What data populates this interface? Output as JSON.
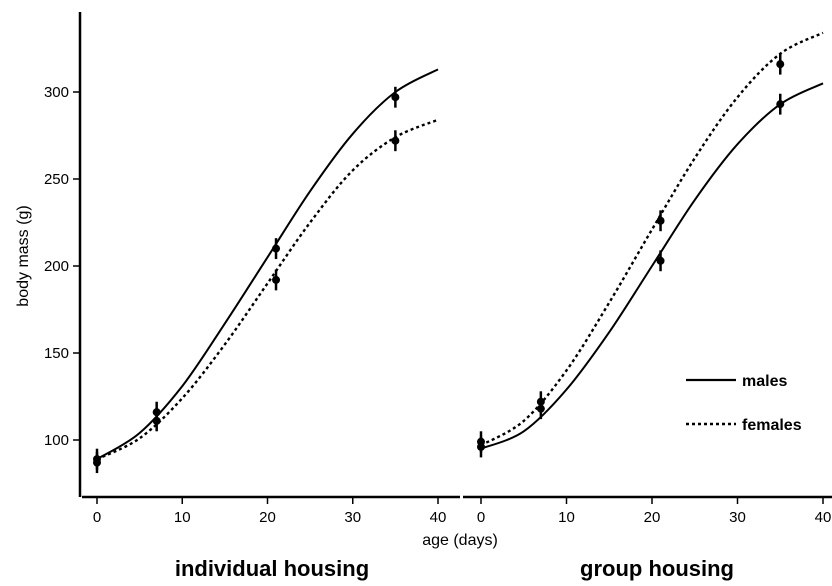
{
  "chart_data": {
    "type": "line",
    "ylabel": "body mass (g)",
    "xlabel": "age (days)",
    "ylim": [
      80,
      335
    ],
    "yticks": [
      100,
      150,
      200,
      250,
      300
    ],
    "legend": {
      "position": "right",
      "items": [
        {
          "label": "males",
          "style": "solid"
        },
        {
          "label": "females",
          "style": "dotted"
        }
      ]
    },
    "panels": [
      {
        "title": "individual housing",
        "xlim": [
          -1,
          41
        ],
        "xticks": [
          0,
          10,
          20,
          30,
          40
        ],
        "series": [
          {
            "name": "males",
            "style": "solid",
            "points": [
              {
                "x": 0,
                "y": 89,
                "err": 6
              },
              {
                "x": 7,
                "y": 116,
                "err": 6
              },
              {
                "x": 21,
                "y": 210,
                "err": 6
              },
              {
                "x": 35,
                "y": 297,
                "err": 6
              }
            ],
            "curve": {
              "x": [
                0,
                5,
                10,
                15,
                20,
                25,
                30,
                35,
                40
              ],
              "y": [
                89,
                104,
                131,
                167,
                205,
                243,
                276,
                300,
                313
              ]
            }
          },
          {
            "name": "females",
            "style": "dotted",
            "points": [
              {
                "x": 0,
                "y": 87,
                "err": 6
              },
              {
                "x": 7,
                "y": 111,
                "err": 6
              },
              {
                "x": 21,
                "y": 192,
                "err": 6
              },
              {
                "x": 35,
                "y": 272,
                "err": 6
              }
            ],
            "curve": {
              "x": [
                0,
                5,
                10,
                15,
                20,
                25,
                30,
                35,
                40
              ],
              "y": [
                89,
                101,
                124,
                155,
                190,
                225,
                255,
                274,
                284
              ]
            }
          }
        ]
      },
      {
        "title": "group housing",
        "xlim": [
          -1,
          41
        ],
        "xticks": [
          0,
          10,
          20,
          30,
          40
        ],
        "series": [
          {
            "name": "males",
            "style": "solid",
            "points": [
              {
                "x": 0,
                "y": 96,
                "err": 6
              },
              {
                "x": 7,
                "y": 118,
                "err": 6
              },
              {
                "x": 21,
                "y": 203,
                "err": 6
              },
              {
                "x": 35,
                "y": 293,
                "err": 6
              }
            ],
            "curve": {
              "x": [
                0,
                5,
                10,
                15,
                20,
                25,
                30,
                35,
                40
              ],
              "y": [
                95,
                105,
                129,
                162,
                200,
                238,
                270,
                293,
                305
              ]
            }
          },
          {
            "name": "females",
            "style": "dotted",
            "points": [
              {
                "x": 0,
                "y": 99,
                "err": 6
              },
              {
                "x": 7,
                "y": 122,
                "err": 6
              },
              {
                "x": 21,
                "y": 226,
                "err": 6
              },
              {
                "x": 35,
                "y": 316,
                "err": 6
              }
            ],
            "curve": {
              "x": [
                0,
                5,
                10,
                15,
                20,
                25,
                30,
                35,
                40
              ],
              "y": [
                97,
                111,
                140,
                179,
                221,
                262,
                297,
                322,
                334
              ]
            }
          }
        ]
      }
    ]
  }
}
